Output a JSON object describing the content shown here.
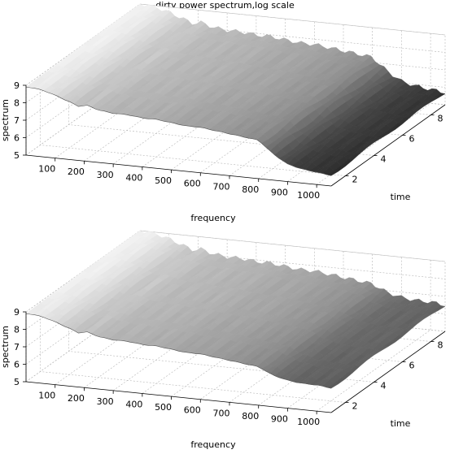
{
  "title": "dirty power spectrum,log scale",
  "colors": {
    "grid": "#b4b4b4",
    "axis": "#000000",
    "light": "#f2f2f2",
    "dark": "#0a0a0a",
    "background": "#ffffff"
  },
  "chart_data": [
    {
      "type": "surface",
      "title": "dirty power spectrum,log scale",
      "xlabel": "frequency",
      "ylabel": "time",
      "zlabel": "spectrum",
      "xticks": [
        "100",
        "200",
        "300",
        "400",
        "500",
        "600",
        "700",
        "800",
        "900",
        "1000"
      ],
      "yticks": [
        "2",
        "4",
        "6",
        "8"
      ],
      "zticks": [
        "5",
        "6",
        "7",
        "8",
        "9"
      ],
      "xlim": [
        0,
        1050
      ],
      "ylim": [
        1,
        9
      ],
      "zlim": [
        5,
        9
      ],
      "colormap": "gray",
      "grid": true,
      "frequency_profile": {
        "frequency": [
          20,
          60,
          100,
          150,
          180,
          210,
          250,
          300,
          350,
          400,
          450,
          500,
          550,
          600,
          650,
          700,
          750,
          800,
          850,
          900,
          950,
          1000,
          1050
        ],
        "spectrum": [
          8.9,
          8.8,
          8.6,
          8.3,
          8.1,
          8.2,
          8.0,
          7.9,
          7.9,
          7.8,
          7.8,
          7.7,
          7.6,
          7.6,
          7.5,
          7.4,
          7.3,
          7.2,
          6.5,
          6.0,
          5.8,
          5.7,
          5.6
        ]
      },
      "time_profile": {
        "time": [
          1,
          3,
          5,
          7,
          9
        ],
        "offset": [
          0.0,
          0.05,
          0.1,
          0.1,
          0.1
        ]
      }
    },
    {
      "type": "surface",
      "title": "",
      "xlabel": "frequency",
      "ylabel": "time",
      "zlabel": "spectrum",
      "xticks": [
        "100",
        "200",
        "300",
        "400",
        "500",
        "600",
        "700",
        "800",
        "900",
        "1000"
      ],
      "yticks": [
        "2",
        "4",
        "6",
        "8"
      ],
      "zticks": [
        "5",
        "6",
        "7",
        "8",
        "9"
      ],
      "xlim": [
        0,
        1050
      ],
      "ylim": [
        1,
        9
      ],
      "zlim": [
        5,
        9
      ],
      "colormap": "gray",
      "grid": true,
      "frequency_profile": {
        "frequency": [
          20,
          60,
          100,
          150,
          180,
          210,
          250,
          300,
          350,
          400,
          450,
          500,
          550,
          600,
          650,
          700,
          750,
          800,
          850,
          900,
          950,
          1000,
          1050
        ],
        "spectrum": [
          8.9,
          8.8,
          8.6,
          8.3,
          8.1,
          8.2,
          8.0,
          7.9,
          7.9,
          7.8,
          7.8,
          7.7,
          7.6,
          7.6,
          7.5,
          7.4,
          7.3,
          7.2,
          6.8,
          6.6,
          6.5,
          6.5,
          6.4
        ]
      },
      "time_profile": {
        "time": [
          1,
          3,
          5,
          7,
          9
        ],
        "offset": [
          0.0,
          0.05,
          0.1,
          0.1,
          0.1
        ]
      }
    }
  ]
}
